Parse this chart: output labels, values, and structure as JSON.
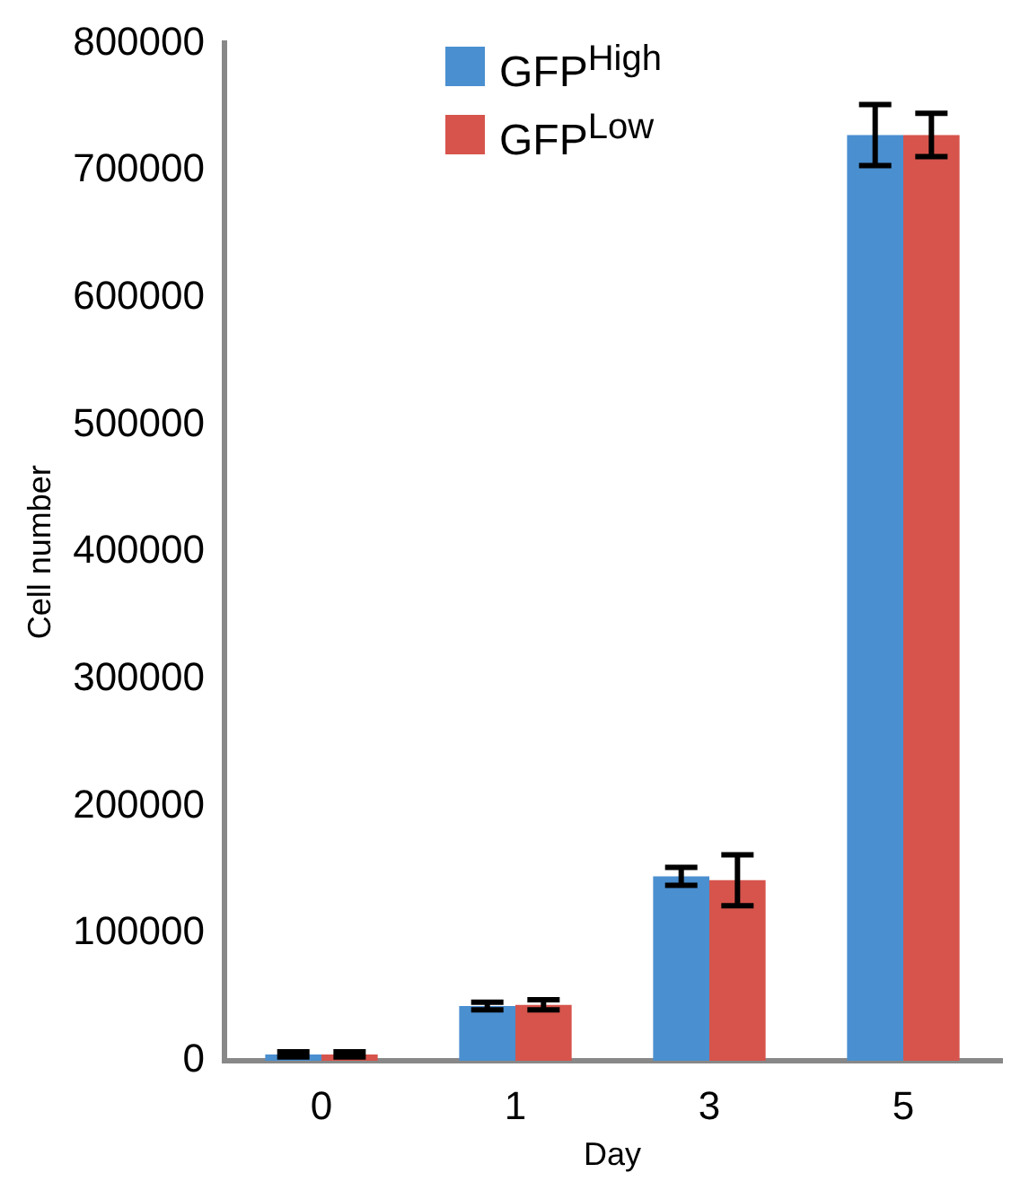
{
  "chart_data": {
    "type": "bar",
    "xlabel": "Day",
    "ylabel": "Cell number",
    "categories": [
      "0",
      "1",
      "3",
      "5"
    ],
    "series": [
      {
        "name": "GFP$^{High}$",
        "color": "#4a8fd0",
        "values": [
          5000,
          43000,
          145000,
          728000
        ],
        "errors": [
          2000,
          3000,
          7000,
          24000
        ]
      },
      {
        "name": "GFP$^{Low}$",
        "color": "#d6544c",
        "values": [
          5000,
          44000,
          142000,
          728000
        ],
        "errors": [
          2000,
          4000,
          20000,
          17000
        ]
      }
    ],
    "ylim": [
      0,
      800000
    ],
    "yticks": [
      0,
      100000,
      200000,
      300000,
      400000,
      500000,
      600000,
      700000,
      800000
    ],
    "grid": false,
    "legend": "top"
  }
}
